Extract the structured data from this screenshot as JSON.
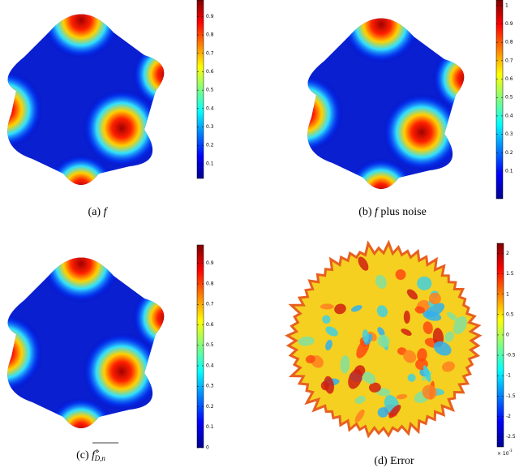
{
  "panels": [
    {
      "label": "(a)",
      "caption": "f",
      "colorbar": {
        "lim": [
          0.02,
          0.99
        ],
        "ticks": [
          0.1,
          0.2,
          0.3,
          0.4,
          0.5,
          0.6,
          0.7,
          0.8,
          0.9
        ]
      }
    },
    {
      "label": "(b)",
      "caption": "f",
      "caption_rest": "plus noise",
      "colorbar": {
        "lim": [
          -0.05,
          1.03
        ],
        "ticks": [
          0.1,
          0.2,
          0.3,
          0.4,
          0.5,
          0.6,
          0.7,
          0.8,
          0.9,
          1
        ]
      }
    },
    {
      "label": "(c)",
      "caption": "f",
      "caption_sup": "⋄",
      "caption_sub": "D,n",
      "colorbar": {
        "lim": [
          0,
          0.99
        ],
        "ticks": [
          0,
          0.1,
          0.2,
          0.3,
          0.4,
          0.5,
          0.6,
          0.7,
          0.8,
          0.9
        ]
      }
    },
    {
      "label": "(d)",
      "caption": "Error",
      "colorbar": {
        "lim": [
          -2.75,
          2.25
        ],
        "ticks": [
          -2.5,
          -2,
          -1.5,
          -1,
          -0.5,
          0,
          0.5,
          1,
          1.5,
          2
        ],
        "multiplier": "× 10",
        "multiplier_exp": "-3"
      }
    }
  ]
}
